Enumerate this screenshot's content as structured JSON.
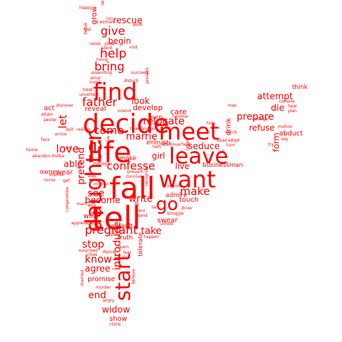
{
  "colors": {
    "word": "#ff0000",
    "background": "#ffffff"
  },
  "words": {
    "tell": "tell",
    "fall": "fall",
    "life": "life",
    "decide": "decide",
    "find": "find",
    "want": "want",
    "meet": "meet",
    "leave": "leave",
    "daughter": "daughter",
    "start": "start",
    "go": "go",
    "give": "give",
    "help": "help",
    "bring": "bring",
    "father": "father",
    "come": "come",
    "confesse": "confesse",
    "relocate": "relocate",
    "pregnant": "pregnant",
    "make": "make",
    "know": "know",
    "end": "end",
    "introduce": "introduce",
    "love": "love",
    "able": "able",
    "pretend": "pretend",
    "marrie": "marrie",
    "see": "see",
    "become": "become",
    "write": "write",
    "stop": "stop",
    "take": "take",
    "agree": "agree",
    "widow": "widow",
    "rescue": "rescue",
    "grow": "grow",
    "begin": "begin",
    "look": "look",
    "seduce": "seduce",
    "live": "live",
    "girl": "girl",
    "prepare": "prepare",
    "attempt": "attempt",
    "die": "die",
    "refuse": "refuse",
    "form": "form",
    "let": "let",
    "develop": "develop",
    "care": "care",
    "touch": "touch",
    "swear": "swear",
    "show": "show",
    "promise": "promise",
    "reveal": "reveal",
    "businessman": "businessman",
    "wear": "wear",
    "win": "win",
    "drink": "drink",
    "abduct": "abduct",
    "think": "think",
    "ask": "ask",
    "act": "act",
    "owner": "owner",
    "smoke": "smoke",
    "burn": "burn",
    "entrust": "entrust",
    "assault": "assault",
    "admire": "admire",
    "truth": "truth",
    "tolerate": "tolerate",
    "happy": "happy",
    "desert": "desert",
    "work": "work",
    "run": "run",
    "woman": "woman",
    "feel": "feel",
    "break": "break",
    "relish": "relish",
    "pose": "pose",
    "visit": "visit",
    "silent": "silent",
    "living": "living",
    "assaulting": "assaulting",
    "succeed": "succeed",
    "amar": "amar",
    "insist": "insist",
    "disturb": "disturb",
    "present": "present",
    "treat": "treat",
    "uncertain": "uncertain",
    "discover": "discover",
    "attain": "attain",
    "pester": "pester",
    "arrive": "arrive",
    "face": "face",
    "home": "home",
    "abandon": "abandon",
    "dislike": "dislike",
    "expose": "expose",
    "nurse": "nurse",
    "realize": "realize",
    "intend": "intend",
    "heartbroken": "heartbroken",
    "heroine": "heroine",
    "hide": "hide",
    "catch": "catch",
    "dead": "dead",
    "emerge": "emerge",
    "console": "console",
    "hear": "hear",
    "plan": "plan",
    "motive": "motive",
    "say": "say",
    "try": "try",
    "adopt": "adopt",
    "turn": "turn",
    "kill": "kill",
    "man": "man",
    "overhear": "overhear",
    "rush": "rush",
    "left": "left",
    "return": "return",
    "prevent": "prevent",
    "connive": "connive",
    "inform": "inform",
    "recognize": "recognize",
    "fit": "fit",
    "rent": "rent",
    "send": "send",
    "struggle": "struggle",
    "drive": "drive",
    "unfold": "unfold",
    "happen": "happen",
    "learn": "learn",
    "fear": "fear",
    "alia": "alia",
    "dance": "dance",
    "surprised": "surprised",
    "close": "close",
    "murder": "murder",
    "angry": "angry",
    "climb": "climb",
    "wife": "wife",
    "apprehensive": "apprehensive",
    "mother": "mother",
    "manage": "manage",
    "stay": "stay",
    "get": "get",
    "pull": "pull",
    "quit": "quit",
    "compromise": "compromise",
    "believe": "believe",
    "deceive": "deceive",
    "lie": "lie",
    "married": "married",
    "mark": "mark",
    "sit": "sit"
  }
}
